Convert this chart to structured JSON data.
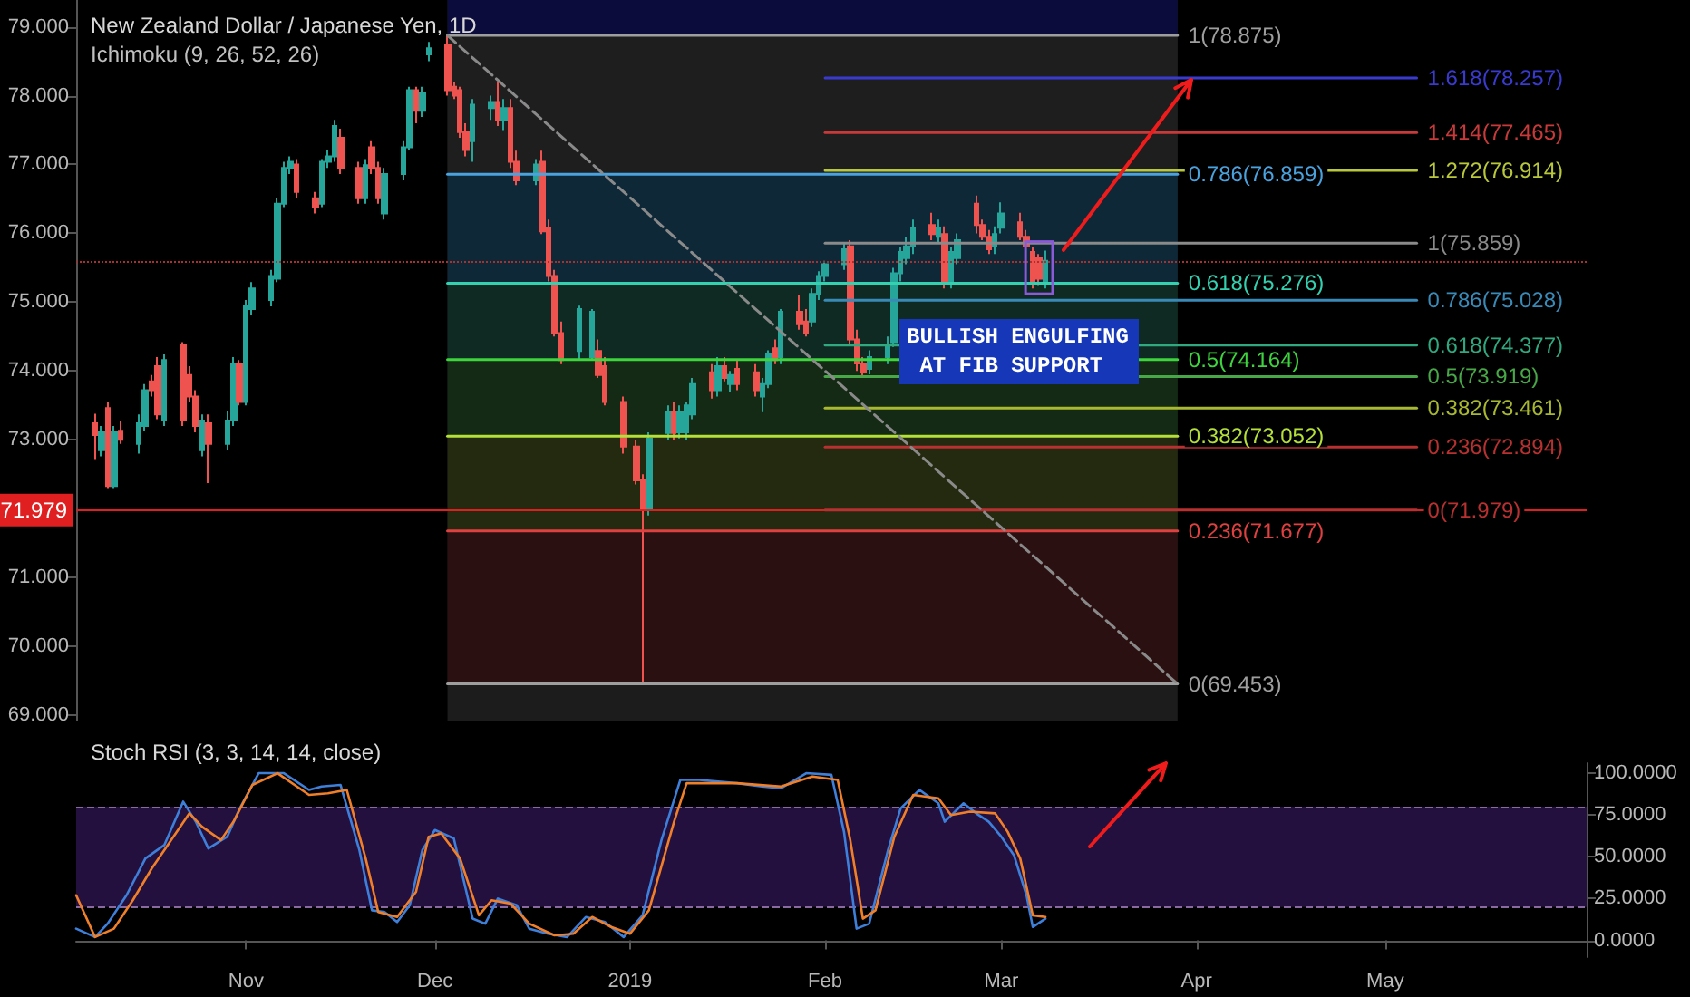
{
  "chart_data": [
    {
      "type": "candlestick",
      "title": "New Zealand Dollar / Japanese Yen, 1D",
      "subtitle": "Ichimoku (9, 26, 52, 26)",
      "x": [
        "2018-10-08",
        "2018-10-09",
        "2018-10-10",
        "2018-10-11",
        "2018-10-12",
        "2018-10-15",
        "2018-10-16",
        "2018-10-17",
        "2018-10-18",
        "2018-10-19",
        "2018-10-22",
        "2018-10-23",
        "2018-10-24",
        "2018-10-25",
        "2018-10-26",
        "2018-10-29",
        "2018-10-30",
        "2018-10-31",
        "2018-11-01",
        "2018-11-02",
        "2018-11-05",
        "2018-11-06",
        "2018-11-07",
        "2018-11-08",
        "2018-11-09",
        "2018-11-12",
        "2018-11-13",
        "2018-11-14",
        "2018-11-15",
        "2018-11-16",
        "2018-11-19",
        "2018-11-20",
        "2018-11-21",
        "2018-11-22",
        "2018-11-23",
        "2018-11-26",
        "2018-11-27",
        "2018-11-28",
        "2018-11-29",
        "2018-11-30",
        "2018-12-03",
        "2018-12-04",
        "2018-12-05",
        "2018-12-06",
        "2018-12-07",
        "2018-12-10",
        "2018-12-11",
        "2018-12-12",
        "2018-12-13",
        "2018-12-14",
        "2018-12-17",
        "2018-12-18",
        "2018-12-19",
        "2018-12-20",
        "2018-12-21",
        "2018-12-24",
        "2018-12-26",
        "2018-12-27",
        "2018-12-28",
        "2018-12-31",
        "2019-01-02",
        "2019-01-03",
        "2019-01-04",
        "2019-01-07",
        "2019-01-08",
        "2019-01-09",
        "2019-01-10",
        "2019-01-11",
        "2019-01-14",
        "2019-01-15",
        "2019-01-16",
        "2019-01-17",
        "2019-01-18",
        "2019-01-21",
        "2019-01-22",
        "2019-01-23",
        "2019-01-24",
        "2019-01-25",
        "2019-01-28",
        "2019-01-29",
        "2019-01-30",
        "2019-01-31",
        "2019-02-01",
        "2019-02-04",
        "2019-02-05",
        "2019-02-06",
        "2019-02-07",
        "2019-02-08",
        "2019-02-11",
        "2019-02-12",
        "2019-02-13",
        "2019-02-14",
        "2019-02-15",
        "2019-02-18",
        "2019-02-19",
        "2019-02-20",
        "2019-02-21",
        "2019-02-22",
        "2019-02-25",
        "2019-02-26",
        "2019-02-27",
        "2019-02-28",
        "2019-03-01",
        "2019-03-04",
        "2019-03-05",
        "2019-03-06",
        "2019-03-07",
        "2019-03-08"
      ],
      "ohlc": [
        [
          73.24,
          73.38,
          72.72,
          73.07
        ],
        [
          72.85,
          73.2,
          72.76,
          73.11
        ],
        [
          73.46,
          73.55,
          72.3,
          72.33
        ],
        [
          72.33,
          73.2,
          72.3,
          73.11
        ],
        [
          73.13,
          73.28,
          72.94,
          73.0
        ],
        [
          72.94,
          73.37,
          72.8,
          73.24
        ],
        [
          73.2,
          73.81,
          73.13,
          73.72
        ],
        [
          73.85,
          73.94,
          73.63,
          73.72
        ],
        [
          74.07,
          74.2,
          73.3,
          73.37
        ],
        [
          73.28,
          74.24,
          73.2,
          74.16
        ],
        [
          74.38,
          74.42,
          73.2,
          73.28
        ],
        [
          73.94,
          74.07,
          73.55,
          73.63
        ],
        [
          73.63,
          73.72,
          73.11,
          73.2
        ],
        [
          72.85,
          73.37,
          72.76,
          73.28
        ],
        [
          73.24,
          73.37,
          72.37,
          72.94
        ],
        [
          72.94,
          73.41,
          72.85,
          73.28
        ],
        [
          73.28,
          74.2,
          73.2,
          74.11
        ],
        [
          74.11,
          74.16,
          73.5,
          73.55
        ],
        [
          73.55,
          75.03,
          73.5,
          74.94
        ],
        [
          74.9,
          75.29,
          74.81,
          75.2
        ],
        [
          75.03,
          75.47,
          74.94,
          75.38
        ],
        [
          75.34,
          76.51,
          75.29,
          76.43
        ],
        [
          76.43,
          77.04,
          76.38,
          76.95
        ],
        [
          76.95,
          77.12,
          76.86,
          77.04
        ],
        [
          77.0,
          77.08,
          76.51,
          76.6
        ],
        [
          76.51,
          76.6,
          76.29,
          76.38
        ],
        [
          76.43,
          77.08,
          76.38,
          77.04
        ],
        [
          77.04,
          77.21,
          76.95,
          77.12
        ],
        [
          77.12,
          77.65,
          77.04,
          77.56
        ],
        [
          77.39,
          77.52,
          76.86,
          76.95
        ],
        [
          76.95,
          77.04,
          76.43,
          76.51
        ],
        [
          76.51,
          77.08,
          76.43,
          76.99
        ],
        [
          77.25,
          77.34,
          76.86,
          76.95
        ],
        [
          76.95,
          77.04,
          76.43,
          76.51
        ],
        [
          76.29,
          76.95,
          76.2,
          76.86
        ],
        [
          76.86,
          77.34,
          76.77,
          77.25
        ],
        [
          77.25,
          78.13,
          77.21,
          78.08
        ],
        [
          78.08,
          78.13,
          77.6,
          77.78
        ],
        [
          77.78,
          78.13,
          77.69,
          78.04
        ],
        [
          78.6,
          78.78,
          78.5,
          78.69
        ],
        [
          78.74,
          78.875,
          78.0,
          78.08
        ],
        [
          78.13,
          78.2,
          77.95,
          78.0
        ],
        [
          78.08,
          78.13,
          77.39,
          77.47
        ],
        [
          77.47,
          77.6,
          77.12,
          77.21
        ],
        [
          77.34,
          77.95,
          77.04,
          77.87
        ],
        [
          77.82,
          78.0,
          77.65,
          77.91
        ],
        [
          77.91,
          78.2,
          77.56,
          77.65
        ],
        [
          77.65,
          77.95,
          77.5,
          77.82
        ],
        [
          77.82,
          77.95,
          76.95,
          77.04
        ],
        [
          77.04,
          77.2,
          76.7,
          76.77
        ],
        [
          76.77,
          77.08,
          76.7,
          77.0
        ],
        [
          77.04,
          77.2,
          75.99,
          76.03
        ],
        [
          76.08,
          76.2,
          75.3,
          75.38
        ],
        [
          75.38,
          75.47,
          74.5,
          74.55
        ],
        [
          74.55,
          74.72,
          74.1,
          74.16
        ],
        [
          74.29,
          74.95,
          74.16,
          74.9
        ],
        [
          74.2,
          74.9,
          74.16,
          74.86
        ],
        [
          74.29,
          74.46,
          73.9,
          73.94
        ],
        [
          74.07,
          74.2,
          73.5,
          73.55
        ],
        [
          73.55,
          73.63,
          72.8,
          72.9
        ],
        [
          72.9,
          73.0,
          72.35,
          72.41
        ],
        [
          72.41,
          72.5,
          69.453,
          71.98
        ],
        [
          71.98,
          73.11,
          71.9,
          73.02
        ],
        [
          73.1,
          73.5,
          73.0,
          73.41
        ],
        [
          73.41,
          73.55,
          73.0,
          73.1
        ],
        [
          73.11,
          73.5,
          73.02,
          73.41
        ],
        [
          73.11,
          73.55,
          73.0,
          73.5
        ],
        [
          73.37,
          73.9,
          73.3,
          73.81
        ],
        [
          73.98,
          74.1,
          73.6,
          73.72
        ],
        [
          73.72,
          74.2,
          73.63,
          74.07
        ],
        [
          74.07,
          74.2,
          73.85,
          73.9
        ],
        [
          73.81,
          74.0,
          73.7,
          73.94
        ],
        [
          74.03,
          74.16,
          73.72,
          73.81
        ],
        [
          73.98,
          74.1,
          73.63,
          73.72
        ],
        [
          73.63,
          73.9,
          73.4,
          73.81
        ],
        [
          73.81,
          74.3,
          73.75,
          74.24
        ],
        [
          74.33,
          74.46,
          74.1,
          74.16
        ],
        [
          74.2,
          74.9,
          74.1,
          74.86
        ],
        [
          74.86,
          75.1,
          74.6,
          74.68
        ],
        [
          74.72,
          74.9,
          74.5,
          74.55
        ],
        [
          74.72,
          75.2,
          74.64,
          75.12
        ],
        [
          75.12,
          75.45,
          75.03,
          75.38
        ],
        [
          75.38,
          75.6,
          75.3,
          75.55
        ],
        [
          75.55,
          75.85,
          75.47,
          75.77
        ],
        [
          75.81,
          75.9,
          74.4,
          74.46
        ],
        [
          74.46,
          74.6,
          74.0,
          74.11
        ],
        [
          74.11,
          74.2,
          73.9,
          73.98
        ],
        [
          74.03,
          74.3,
          73.95,
          74.2
        ],
        [
          74.2,
          74.5,
          74.1,
          74.38
        ],
        [
          74.42,
          75.5,
          74.35,
          75.42
        ],
        [
          75.42,
          75.8,
          75.3,
          75.73
        ],
        [
          75.64,
          75.95,
          75.55,
          75.81
        ],
        [
          75.81,
          76.2,
          75.7,
          76.08
        ],
        [
          76.12,
          76.3,
          75.9,
          75.99
        ],
        [
          75.95,
          76.2,
          75.85,
          76.08
        ],
        [
          75.99,
          76.1,
          75.2,
          75.29
        ],
        [
          75.29,
          75.8,
          75.2,
          75.73
        ],
        [
          75.64,
          76.0,
          75.55,
          75.9
        ],
        [
          76.43,
          76.55,
          76.0,
          76.12
        ],
        [
          76.12,
          76.2,
          75.9,
          75.95
        ],
        [
          75.95,
          76.05,
          75.7,
          75.77
        ],
        [
          75.81,
          76.1,
          75.7,
          75.99
        ],
        [
          76.08,
          76.45,
          76.0,
          76.29
        ],
        [
          76.16,
          76.3,
          75.9,
          75.95
        ],
        [
          75.95,
          76.05,
          75.75,
          75.81
        ],
        [
          75.73,
          75.8,
          75.2,
          75.3
        ],
        [
          75.64,
          75.7,
          75.25,
          75.34
        ],
        [
          75.3,
          75.75,
          75.2,
          75.6
        ]
      ],
      "series": [
        {
          "type": "line",
          "name": "1(78.875)",
          "color": "#9e9e9e",
          "x": [
            "2018-12-03",
            "2019-03-29"
          ],
          "values": [
            78.875,
            78.875
          ]
        },
        {
          "type": "line",
          "name": "0.786(76.859)",
          "color": "#4aa3df",
          "x": [
            "2018-12-03",
            "2019-03-29"
          ],
          "values": [
            76.859,
            76.859
          ]
        },
        {
          "type": "line",
          "name": "0.618(75.276)",
          "color": "#34d1b0",
          "x": [
            "2018-12-03",
            "2019-03-29"
          ],
          "values": [
            75.276,
            75.276
          ]
        },
        {
          "type": "line",
          "name": "0.5(74.164)",
          "color": "#3ed43e",
          "x": [
            "2018-12-03",
            "2019-03-29"
          ],
          "values": [
            74.164,
            74.164
          ]
        },
        {
          "type": "line",
          "name": "0.382(73.052)",
          "color": "#b5e03a",
          "x": [
            "2018-12-03",
            "2019-03-29"
          ],
          "values": [
            73.052,
            73.052
          ]
        },
        {
          "type": "line",
          "name": "0.236(71.677)",
          "color": "#e04040",
          "x": [
            "2018-12-03",
            "2019-03-29"
          ],
          "values": [
            71.677,
            71.677
          ]
        },
        {
          "type": "line",
          "name": "0(69.453)",
          "color": "#9e9e9e",
          "x": [
            "2018-12-03",
            "2019-03-29"
          ],
          "values": [
            69.453,
            69.453
          ]
        },
        {
          "type": "line",
          "name": "1.618(78.257)",
          "color": "#3a3ad0",
          "x": [
            "2019-02-01",
            "2019-05-06"
          ],
          "values": [
            78.257,
            78.257
          ]
        },
        {
          "type": "line",
          "name": "1.414(77.465)",
          "color": "#c83a3a",
          "x": [
            "2019-02-01",
            "2019-05-06"
          ],
          "values": [
            77.465,
            77.465
          ]
        },
        {
          "type": "line",
          "name": "1.272(76.914)",
          "color": "#b8c83a",
          "x": [
            "2019-02-01",
            "2019-05-06"
          ],
          "values": [
            76.914,
            76.914
          ]
        },
        {
          "type": "line",
          "name": "1(75.859)",
          "color": "#8a8a8a",
          "x": [
            "2019-02-01",
            "2019-05-06"
          ],
          "values": [
            75.859,
            75.859
          ]
        },
        {
          "type": "line",
          "name": "0.786(75.028)",
          "color": "#3a8ab8",
          "x": [
            "2019-02-01",
            "2019-05-06"
          ],
          "values": [
            75.028,
            75.028
          ]
        },
        {
          "type": "line",
          "name": "0.618(74.377)",
          "color": "#30a880",
          "x": [
            "2019-02-01",
            "2019-05-06"
          ],
          "values": [
            74.377,
            74.377
          ]
        },
        {
          "type": "line",
          "name": "0.5(73.919)",
          "color": "#48a848",
          "x": [
            "2019-02-01",
            "2019-05-06"
          ],
          "values": [
            73.919,
            73.919
          ]
        },
        {
          "type": "line",
          "name": "0.382(73.461)",
          "color": "#a8b830",
          "x": [
            "2019-02-01",
            "2019-05-06"
          ],
          "values": [
            73.461,
            73.461
          ]
        },
        {
          "type": "line",
          "name": "0.236(72.894)",
          "color": "#b83030",
          "x": [
            "2019-02-01",
            "2019-05-06"
          ],
          "values": [
            72.894,
            72.894
          ]
        },
        {
          "type": "line",
          "name": "0(71.979)",
          "color": "#b83030",
          "x": [
            "2019-02-01",
            "2019-05-06"
          ],
          "values": [
            71.979,
            71.979
          ]
        },
        {
          "type": "line",
          "color": "#8a8a8a",
          "line_style": "dashed",
          "x": [
            "2018-12-03",
            "2019-03-29"
          ],
          "values": [
            78.875,
            69.453
          ]
        }
      ],
      "ref_lines": [
        {
          "axis": "y",
          "value": 71.979,
          "label": "71.979",
          "color": "#e02020",
          "line_style": "solid"
        },
        {
          "axis": "y",
          "value": 75.6,
          "color": "#a83030",
          "line_style": "dotted"
        }
      ],
      "bands": [
        {
          "axis": "x",
          "from": "2018-12-03",
          "to": "2019-03-29",
          "color": "#1c1c1c"
        },
        {
          "axis": "y",
          "from": 78.875,
          "to": 79.39,
          "color": "#0c0c3c"
        },
        {
          "axis": "y",
          "from": 76.859,
          "to": 78.875,
          "color": "#1e1e1e"
        },
        {
          "axis": "y",
          "from": 75.276,
          "to": 76.859,
          "color": "#0f2838"
        },
        {
          "axis": "y",
          "from": 74.164,
          "to": 75.276,
          "color": "#0f2a22"
        },
        {
          "axis": "y",
          "from": 73.052,
          "to": 74.164,
          "color": "#142a14"
        },
        {
          "axis": "y",
          "from": 71.677,
          "to": 73.052,
          "color": "#232a10"
        },
        {
          "axis": "y",
          "from": 69.453,
          "to": 71.677,
          "color": "#2a1010"
        }
      ],
      "annotations": [
        "BULLISH ENGULFING AT FIB SUPPORT"
      ],
      "xlim": [
        "2018-10-05",
        "2019-06-02"
      ],
      "ylim": [
        68.92,
        79.39
      ],
      "yticks": [
        {
          "value": 69,
          "label": "69.000"
        },
        {
          "value": 70,
          "label": "70.000"
        },
        {
          "value": 71,
          "label": "71.000"
        },
        {
          "value": 73,
          "label": "73.000"
        },
        {
          "value": 74,
          "label": "74.000"
        },
        {
          "value": 75,
          "label": "75.000"
        },
        {
          "value": 76,
          "label": "76.000"
        },
        {
          "value": 77,
          "label": "77.000"
        },
        {
          "value": 78,
          "label": "78.000"
        },
        {
          "value": 79,
          "label": "79.000"
        }
      ],
      "tick_labels": "y"
    },
    {
      "type": "line",
      "title": "Stoch RSI (3, 3, 14, 14, close)",
      "series": [
        {
          "color": "#3d7fd9",
          "x": [
            "2018-10-05",
            "2018-10-08",
            "2018-10-10",
            "2018-10-13",
            "2018-10-16",
            "2018-10-19",
            "2018-10-22",
            "2018-10-24",
            "2018-10-26",
            "2018-10-29",
            "2018-10-31",
            "2018-11-03",
            "2018-11-07",
            "2018-11-11",
            "2018-11-13",
            "2018-11-16",
            "2018-11-19",
            "2018-11-21",
            "2018-11-23",
            "2018-11-25",
            "2018-11-27",
            "2018-11-29",
            "2018-12-01",
            "2018-12-04",
            "2018-12-07",
            "2018-12-09",
            "2018-12-11",
            "2018-12-14",
            "2018-12-16",
            "2018-12-19",
            "2018-12-22",
            "2018-12-25",
            "2018-12-28",
            "2018-12-31",
            "2019-01-03",
            "2019-01-06",
            "2019-01-09",
            "2019-01-12",
            "2019-01-18",
            "2019-01-22",
            "2019-01-25",
            "2019-01-29",
            "2019-02-02",
            "2019-02-04",
            "2019-02-06",
            "2019-02-08",
            "2019-02-11",
            "2019-02-13",
            "2019-02-16",
            "2019-02-19",
            "2019-02-20",
            "2019-02-23",
            "2019-02-25",
            "2019-02-27",
            "2019-03-01",
            "2019-03-03",
            "2019-03-05",
            "2019-03-06",
            "2019-03-08"
          ],
          "values": [
            7,
            2,
            10,
            27,
            49,
            57,
            83,
            71,
            55,
            62,
            79,
            100,
            100,
            90,
            92,
            93,
            54,
            18,
            17,
            11,
            21,
            54,
            66,
            61,
            13,
            10,
            25,
            21,
            7,
            4,
            2,
            14,
            11,
            2,
            15,
            60,
            96,
            96,
            94,
            92,
            91,
            100,
            99,
            65,
            7,
            10,
            54,
            79,
            90,
            82,
            71,
            82,
            76,
            71,
            62,
            51,
            27,
            8,
            13
          ]
        },
        {
          "color": "#f07f2a",
          "x": [
            "2018-10-05",
            "2018-10-08",
            "2018-10-11",
            "2018-10-14",
            "2018-10-17",
            "2018-10-19",
            "2018-10-23",
            "2018-10-25",
            "2018-10-28",
            "2018-10-30",
            "2018-11-02",
            "2018-11-06",
            "2018-11-11",
            "2018-11-14",
            "2018-11-17",
            "2018-11-20",
            "2018-11-22",
            "2018-11-25",
            "2018-11-28",
            "2018-11-30",
            "2018-12-02",
            "2018-12-05",
            "2018-12-08",
            "2018-12-10",
            "2018-12-13",
            "2018-12-16",
            "2018-12-20",
            "2018-12-23",
            "2018-12-26",
            "2018-12-29",
            "2019-01-01",
            "2019-01-04",
            "2019-01-08",
            "2019-01-10",
            "2019-01-18",
            "2019-01-25",
            "2019-01-30",
            "2019-02-03",
            "2019-02-05",
            "2019-02-07",
            "2019-02-09",
            "2019-02-12",
            "2019-02-15",
            "2019-02-19",
            "2019-02-21",
            "2019-02-24",
            "2019-02-28",
            "2019-03-02",
            "2019-03-04",
            "2019-03-06",
            "2019-03-08"
          ],
          "values": [
            27,
            2,
            7,
            24,
            43,
            54,
            76,
            68,
            60,
            71,
            93,
            100,
            87,
            88,
            90,
            49,
            17,
            14,
            29,
            62,
            64,
            49,
            15,
            24,
            22,
            10,
            3,
            4,
            14,
            8,
            4,
            18,
            71,
            94,
            94,
            92,
            98,
            96,
            60,
            13,
            18,
            62,
            87,
            85,
            75,
            77,
            76,
            65,
            49,
            15,
            14
          ]
        }
      ],
      "ref_lines": [
        {
          "axis": "y",
          "value": 80,
          "color": "#8a6aa0",
          "line_style": "dashed"
        },
        {
          "axis": "y",
          "value": 20,
          "color": "#8a6aa0",
          "line_style": "dashed"
        }
      ],
      "bands": [
        {
          "axis": "y",
          "from": 20,
          "to": 80,
          "color": "#24103e"
        }
      ],
      "xlim": [
        "2018-10-05",
        "2019-06-02"
      ],
      "ylim": [
        -10,
        106
      ],
      "xticks": [
        {
          "value": "2018-11-01",
          "label": "Nov"
        },
        {
          "value": "2018-12-01",
          "label": "Dec"
        },
        {
          "value": "2019-01-01",
          "label": "2019"
        },
        {
          "value": "2019-02-01",
          "label": "Feb"
        },
        {
          "value": "2019-03-01",
          "label": "Mar"
        },
        {
          "value": "2019-04-01",
          "label": "Apr"
        },
        {
          "value": "2019-05-01",
          "label": "May"
        }
      ],
      "yticks": [
        {
          "value": 0,
          "label": "0.0000"
        },
        {
          "value": 25,
          "label": "25.0000"
        },
        {
          "value": 50,
          "label": "50.0000"
        },
        {
          "value": 75,
          "label": "75.0000"
        },
        {
          "value": 100,
          "label": "100.0000"
        }
      ]
    }
  ]
}
